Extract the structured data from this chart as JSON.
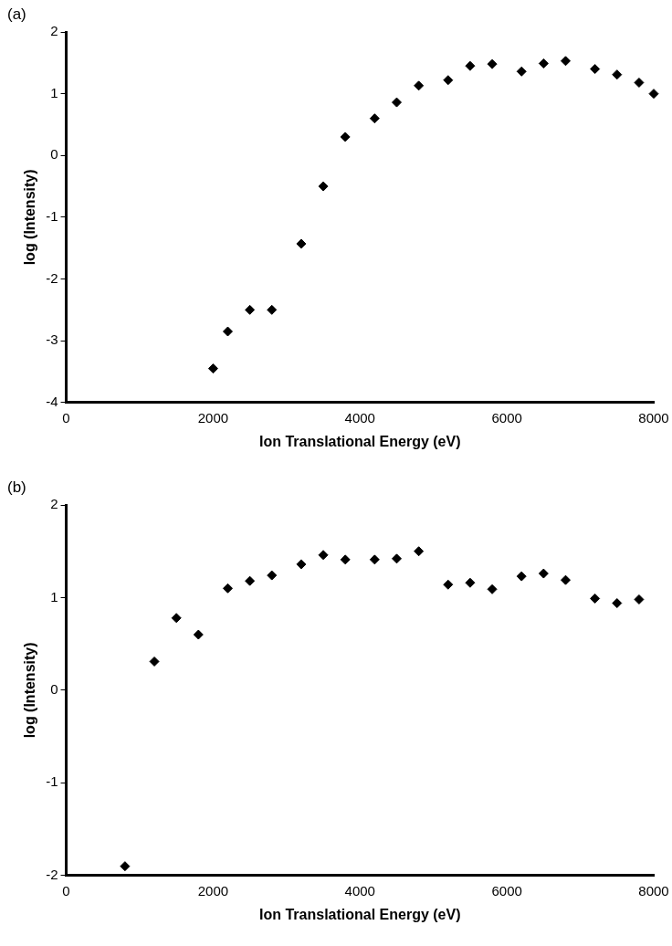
{
  "chart_data": [
    {
      "type": "scatter",
      "annotations": [
        "(a)"
      ],
      "xlabel": "Ion Translational Energy (eV)",
      "ylabel": "log (Intensity)",
      "xlim": [
        0,
        8000
      ],
      "xticks": [
        0,
        2000,
        4000,
        6000,
        8000
      ],
      "ylim": [
        -4,
        2
      ],
      "yticks": [
        -4,
        -3,
        -2,
        -1,
        0,
        1,
        2
      ],
      "grid": false,
      "legend": false,
      "marker": "diamond",
      "series": [
        {
          "color": "#000000",
          "x": [
            2000,
            2200,
            2500,
            2800,
            3200,
            3500,
            3800,
            4200,
            4500,
            4800,
            5200,
            5500,
            5800,
            6200,
            6500,
            6800,
            7200,
            7500,
            7800,
            8000
          ],
          "values": [
            -3.45,
            -2.85,
            -2.5,
            -2.5,
            -1.43,
            -0.5,
            0.3,
            0.6,
            0.86,
            1.13,
            1.22,
            1.45,
            1.48,
            1.36,
            1.49,
            1.53,
            1.4,
            1.31,
            1.18,
            1.0
          ]
        }
      ]
    },
    {
      "type": "scatter",
      "annotations": [
        "(b)"
      ],
      "xlabel": "Ion Translational Energy (eV)",
      "ylabel": "log (Intensity)",
      "xlim": [
        0,
        8000
      ],
      "xticks": [
        0,
        2000,
        4000,
        6000,
        8000
      ],
      "ylim": [
        -2,
        2
      ],
      "yticks": [
        -2,
        -1,
        0,
        1,
        2
      ],
      "grid": false,
      "legend": false,
      "marker": "diamond",
      "series": [
        {
          "color": "#000000",
          "x": [
            800,
            1200,
            1500,
            1800,
            2200,
            2500,
            2800,
            3200,
            3500,
            3800,
            4200,
            4500,
            4800,
            5200,
            5500,
            5800,
            6200,
            6500,
            6800,
            7200,
            7500,
            7800
          ],
          "values": [
            -1.9,
            0.31,
            0.78,
            0.6,
            1.1,
            1.18,
            1.24,
            1.36,
            1.46,
            1.41,
            1.41,
            1.42,
            1.5,
            1.14,
            1.16,
            1.09,
            1.23,
            1.26,
            1.19,
            0.99,
            0.94,
            0.98
          ]
        }
      ]
    }
  ]
}
